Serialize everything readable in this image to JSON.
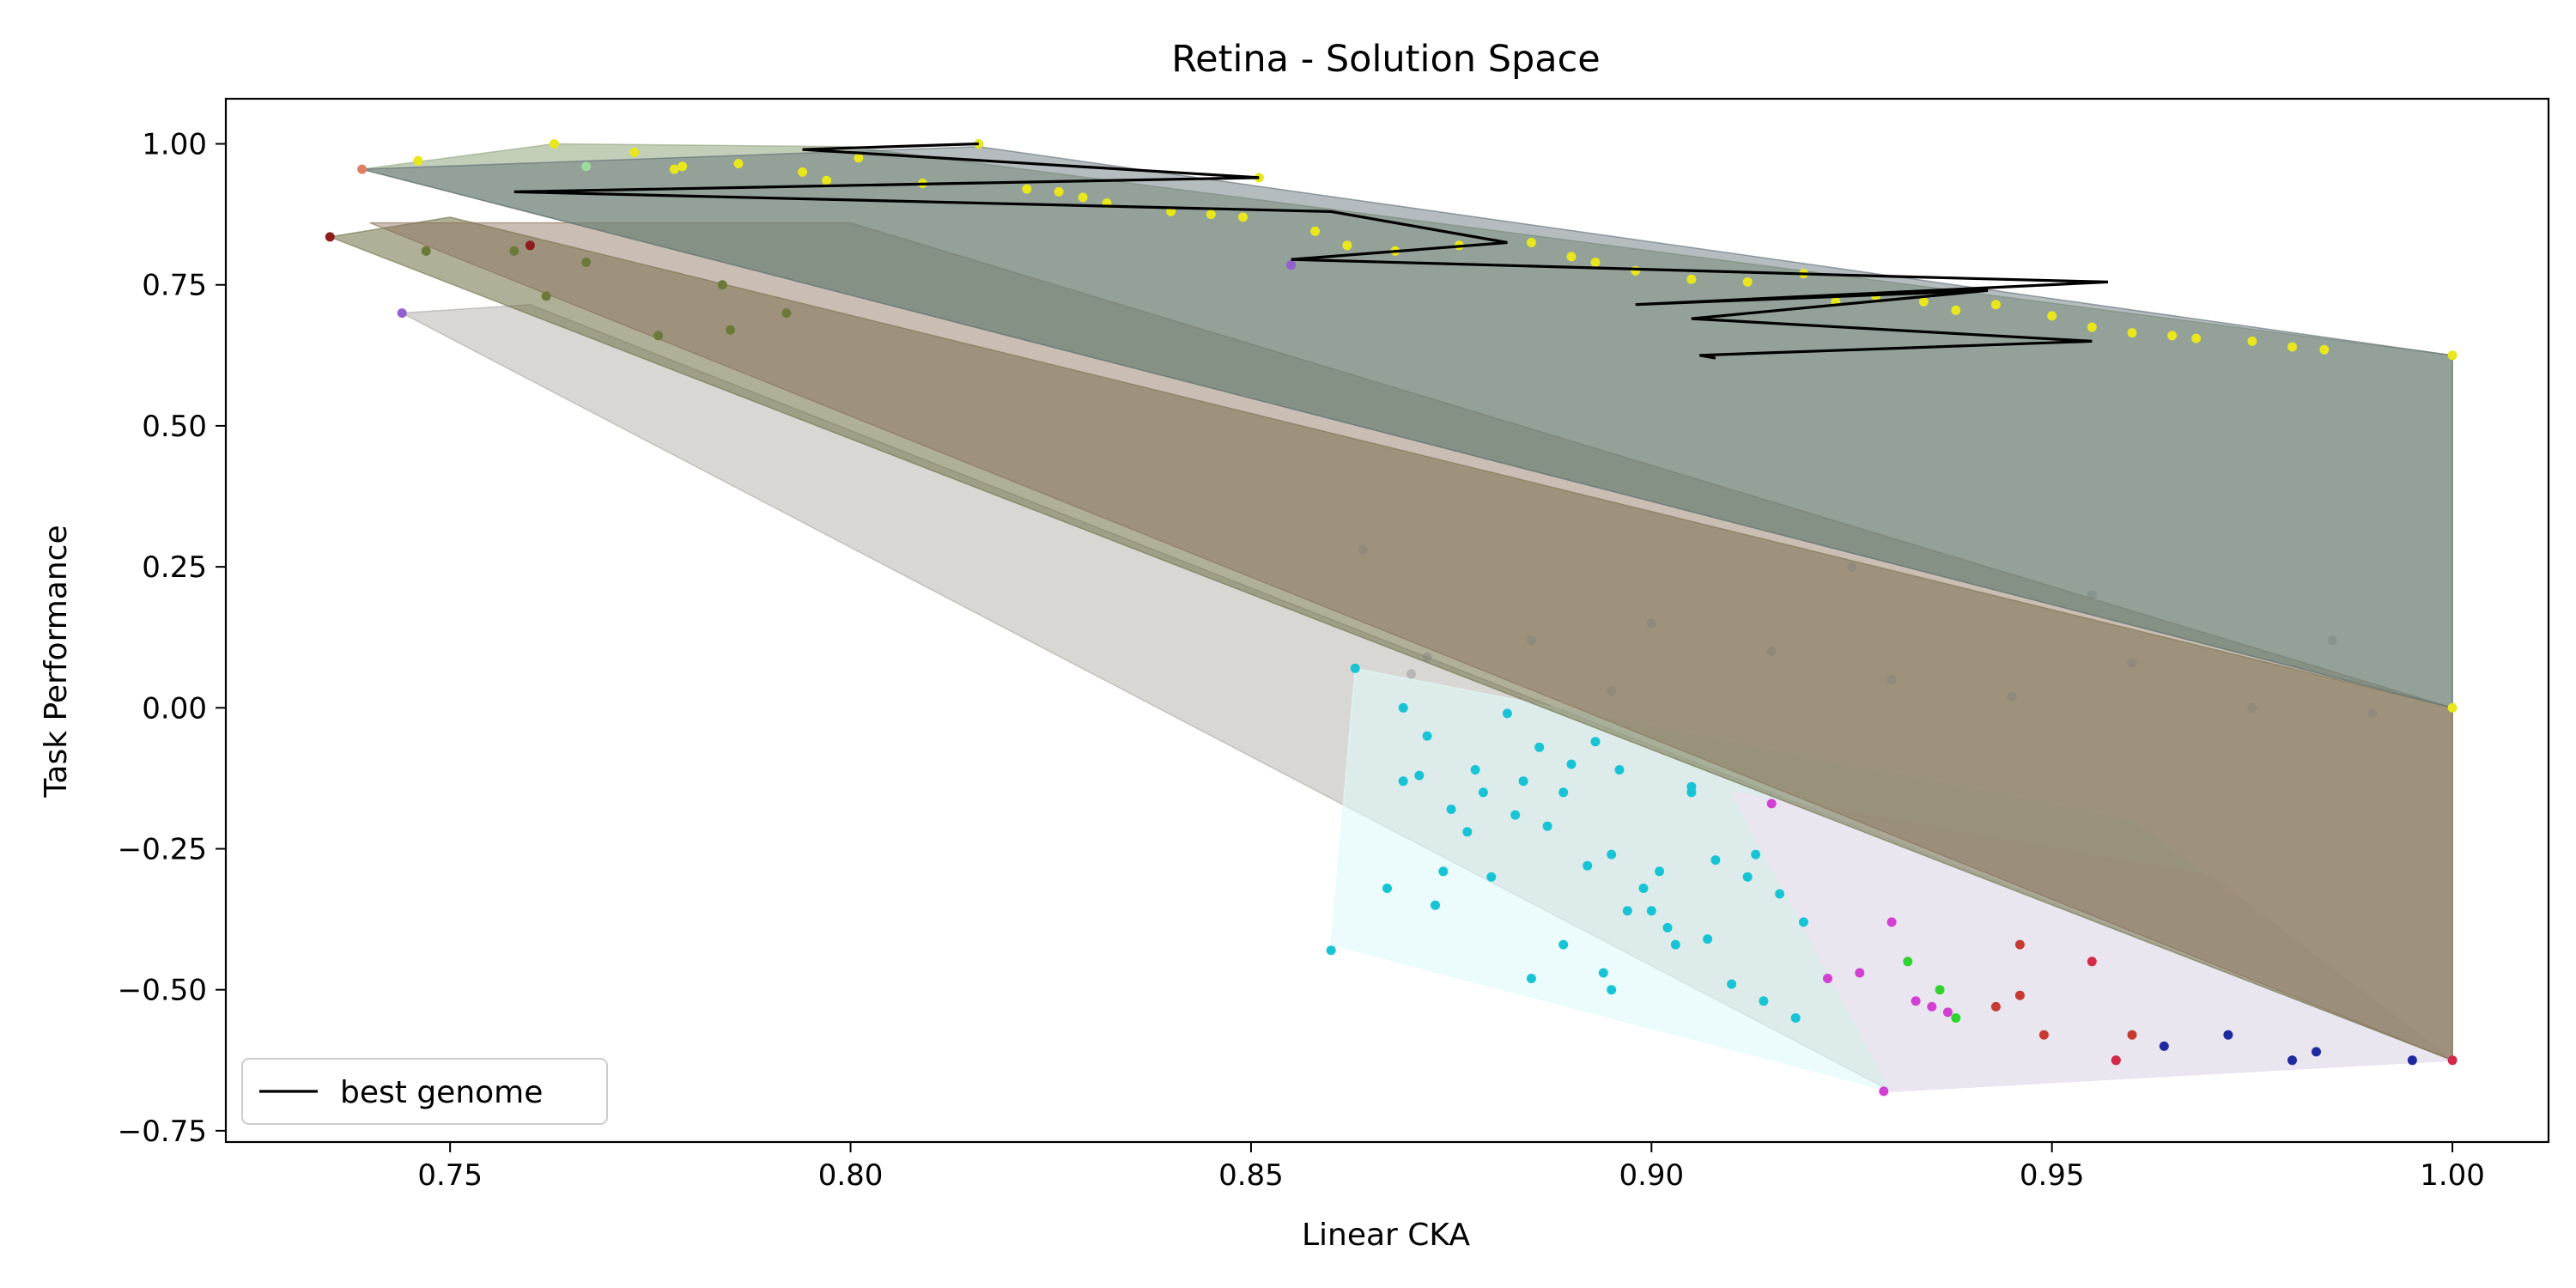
{
  "chart_data": {
    "type": "scatter",
    "title": "Retina - Solution Space",
    "xlabel": "Linear CKA",
    "ylabel": "Task Performance",
    "xlim": [
      0.722,
      1.012
    ],
    "ylim": [
      -0.77,
      1.08
    ],
    "xticks": [
      0.75,
      0.8,
      0.85,
      0.9,
      0.95,
      1.0
    ],
    "xtick_labels": [
      "0.75",
      "0.80",
      "0.85",
      "0.90",
      "0.95",
      "1.00"
    ],
    "yticks": [
      -0.75,
      -0.5,
      -0.25,
      0.0,
      0.25,
      0.5,
      0.75,
      1.0
    ],
    "ytick_labels": [
      "−0.75",
      "−0.50",
      "−0.25",
      "0.00",
      "0.25",
      "0.50",
      "0.75",
      "1.00"
    ],
    "grid": false,
    "legend": {
      "position": "lower-left",
      "entries": [
        {
          "label": "best genome",
          "color": "#000000"
        }
      ]
    },
    "hulls": [
      {
        "color": "#aaa79f",
        "opacity": 0.45,
        "points": [
          [
            0.744,
            0.7
          ],
          [
            0.76,
            0.715
          ],
          [
            1.0,
            -0.625
          ],
          [
            0.93,
            -0.68
          ]
        ]
      },
      {
        "color": "#e0fafa",
        "opacity": 0.6,
        "points": [
          [
            0.86,
            -0.42
          ],
          [
            0.863,
            0.07
          ],
          [
            0.96,
            -0.2
          ],
          [
            1.0,
            -0.625
          ],
          [
            0.93,
            -0.68
          ]
        ]
      },
      {
        "color": "#f5dff5",
        "opacity": 0.5,
        "points": [
          [
            0.91,
            -0.15
          ],
          [
            0.97,
            -0.3
          ],
          [
            1.0,
            -0.625
          ],
          [
            0.93,
            -0.68
          ]
        ]
      },
      {
        "color": "#6f6f45",
        "opacity": 0.55,
        "points": [
          [
            0.735,
            0.835
          ],
          [
            0.75,
            0.87
          ],
          [
            1.0,
            0.0
          ],
          [
            1.0,
            -0.625
          ]
        ]
      },
      {
        "color": "#8a6f58",
        "opacity": 0.45,
        "points": [
          [
            0.74,
            0.86
          ],
          [
            0.8,
            0.86
          ],
          [
            1.0,
            0.0
          ],
          [
            1.0,
            -0.625
          ]
        ]
      },
      {
        "color": "#8fa57d",
        "opacity": 0.55,
        "points": [
          [
            0.739,
            0.955
          ],
          [
            0.763,
            1.0
          ],
          [
            0.8,
            0.995
          ],
          [
            1.0,
            0.625
          ],
          [
            1.0,
            0.0
          ]
        ]
      },
      {
        "color": "#5b6b73",
        "opacity": 0.45,
        "points": [
          [
            0.739,
            0.955
          ],
          [
            0.816,
            0.995
          ],
          [
            1.0,
            0.625
          ],
          [
            1.0,
            0.0
          ]
        ]
      }
    ],
    "best_genome": {
      "name": "best genome",
      "color": "#000000",
      "x": [
        0.816,
        0.794,
        0.851,
        0.758,
        0.86,
        0.882,
        0.855,
        0.893,
        0.93,
        0.957,
        0.898,
        0.942,
        0.905,
        0.955,
        0.906,
        0.908
      ],
      "y": [
        1.0,
        0.99,
        0.94,
        0.915,
        0.88,
        0.825,
        0.795,
        0.78,
        0.765,
        0.755,
        0.715,
        0.74,
        0.69,
        0.65,
        0.625,
        0.62
      ]
    },
    "series": [
      {
        "name": "yellow",
        "color": "#e8e61c",
        "x": [
          0.746,
          0.763,
          0.773,
          0.778,
          0.779,
          0.786,
          0.794,
          0.797,
          0.801,
          0.809,
          0.816,
          0.822,
          0.826,
          0.829,
          0.832,
          0.84,
          0.845,
          0.849,
          0.851,
          0.858,
          0.862,
          0.868,
          0.876,
          0.885,
          0.89,
          0.893,
          0.898,
          0.905,
          0.912,
          0.919,
          0.923,
          0.928,
          0.934,
          0.938,
          0.943,
          0.95,
          0.955,
          0.96,
          0.965,
          0.968,
          0.975,
          0.98,
          0.984,
          1.0,
          1.0
        ],
        "y": [
          0.97,
          1.0,
          0.985,
          0.955,
          0.96,
          0.965,
          0.95,
          0.935,
          0.975,
          0.93,
          1.0,
          0.92,
          0.915,
          0.905,
          0.895,
          0.88,
          0.875,
          0.87,
          0.94,
          0.845,
          0.82,
          0.81,
          0.82,
          0.825,
          0.8,
          0.79,
          0.775,
          0.76,
          0.755,
          0.77,
          0.72,
          0.73,
          0.72,
          0.705,
          0.715,
          0.695,
          0.675,
          0.665,
          0.66,
          0.655,
          0.65,
          0.64,
          0.635,
          0.625,
          0.0
        ]
      },
      {
        "name": "cyan",
        "color": "#17c4d6",
        "x": [
          0.86,
          0.863,
          0.867,
          0.869,
          0.871,
          0.873,
          0.875,
          0.877,
          0.879,
          0.88,
          0.882,
          0.884,
          0.885,
          0.887,
          0.889,
          0.89,
          0.892,
          0.894,
          0.895,
          0.896,
          0.899,
          0.901,
          0.903,
          0.905,
          0.908,
          0.91,
          0.912,
          0.914,
          0.916,
          0.918,
          0.872,
          0.878,
          0.886,
          0.893,
          0.897,
          0.902,
          0.907,
          0.913,
          0.919,
          0.869,
          0.874,
          0.883,
          0.889,
          0.895,
          0.9,
          0.905
        ],
        "y": [
          -0.43,
          0.07,
          -0.32,
          0.0,
          -0.12,
          -0.35,
          -0.18,
          -0.22,
          -0.15,
          -0.3,
          -0.01,
          -0.13,
          -0.48,
          -0.21,
          -0.42,
          -0.1,
          -0.28,
          -0.47,
          -0.26,
          -0.11,
          -0.32,
          -0.29,
          -0.42,
          -0.15,
          -0.27,
          -0.49,
          -0.3,
          -0.52,
          -0.33,
          -0.55,
          -0.05,
          -0.11,
          -0.07,
          -0.06,
          -0.36,
          -0.39,
          -0.41,
          -0.26,
          -0.38,
          -0.13,
          -0.29,
          -0.19,
          -0.15,
          -0.5,
          -0.36,
          -0.14
        ]
      },
      {
        "name": "magenta",
        "color": "#d33fd3",
        "x": [
          0.915,
          0.922,
          0.926,
          0.929,
          0.93,
          0.933,
          0.935,
          0.937
        ],
        "y": [
          -0.17,
          -0.48,
          -0.47,
          -0.68,
          -0.38,
          -0.52,
          -0.53,
          -0.54
        ]
      },
      {
        "name": "green",
        "color": "#2ed42e",
        "x": [
          0.932,
          0.936,
          0.938
        ],
        "y": [
          -0.45,
          -0.5,
          -0.55
        ]
      },
      {
        "name": "crimson",
        "color": "#d42a4a",
        "x": [
          0.955,
          0.958,
          0.958,
          1.0
        ],
        "y": [
          -0.45,
          -0.625,
          -0.625,
          -0.625
        ]
      },
      {
        "name": "brick",
        "color": "#c63a32",
        "x": [
          0.943,
          0.946,
          0.946,
          0.949,
          0.96
        ],
        "y": [
          -0.53,
          -0.42,
          -0.51,
          -0.58,
          -0.58
        ]
      },
      {
        "name": "navy",
        "color": "#1f2aa0",
        "x": [
          0.964,
          0.972,
          0.98,
          0.983,
          0.995
        ],
        "y": [
          -0.6,
          -0.58,
          -0.625,
          -0.61,
          -0.625
        ]
      },
      {
        "name": "olive",
        "color": "#6b7a3a",
        "x": [
          0.747,
          0.758,
          0.762,
          0.767,
          0.776,
          0.784,
          0.785,
          0.792
        ],
        "y": [
          0.81,
          0.81,
          0.73,
          0.79,
          0.66,
          0.75,
          0.67,
          0.7
        ]
      },
      {
        "name": "maroon",
        "color": "#8e1c1c",
        "x": [
          0.735,
          0.76
        ],
        "y": [
          0.835,
          0.82
        ]
      },
      {
        "name": "salmon",
        "color": "#e08060",
        "x": [
          0.739
        ],
        "y": [
          0.955
        ]
      },
      {
        "name": "lightgreen",
        "color": "#9ed99e",
        "x": [
          0.767
        ],
        "y": [
          0.96
        ]
      },
      {
        "name": "purple",
        "color": "#9060d0",
        "x": [
          0.744,
          0.855
        ],
        "y": [
          0.7,
          0.785
        ]
      },
      {
        "name": "gray",
        "color": "#777777",
        "x": [
          0.864,
          0.872,
          0.885,
          0.9,
          0.915,
          0.93,
          0.945,
          0.96,
          0.975,
          0.99,
          0.87,
          0.895,
          0.925,
          0.955,
          0.985
        ],
        "y": [
          0.28,
          0.09,
          0.12,
          0.15,
          0.1,
          0.05,
          0.02,
          0.08,
          0.0,
          -0.01,
          0.06,
          0.03,
          0.25,
          0.2,
          0.12
        ]
      }
    ]
  }
}
